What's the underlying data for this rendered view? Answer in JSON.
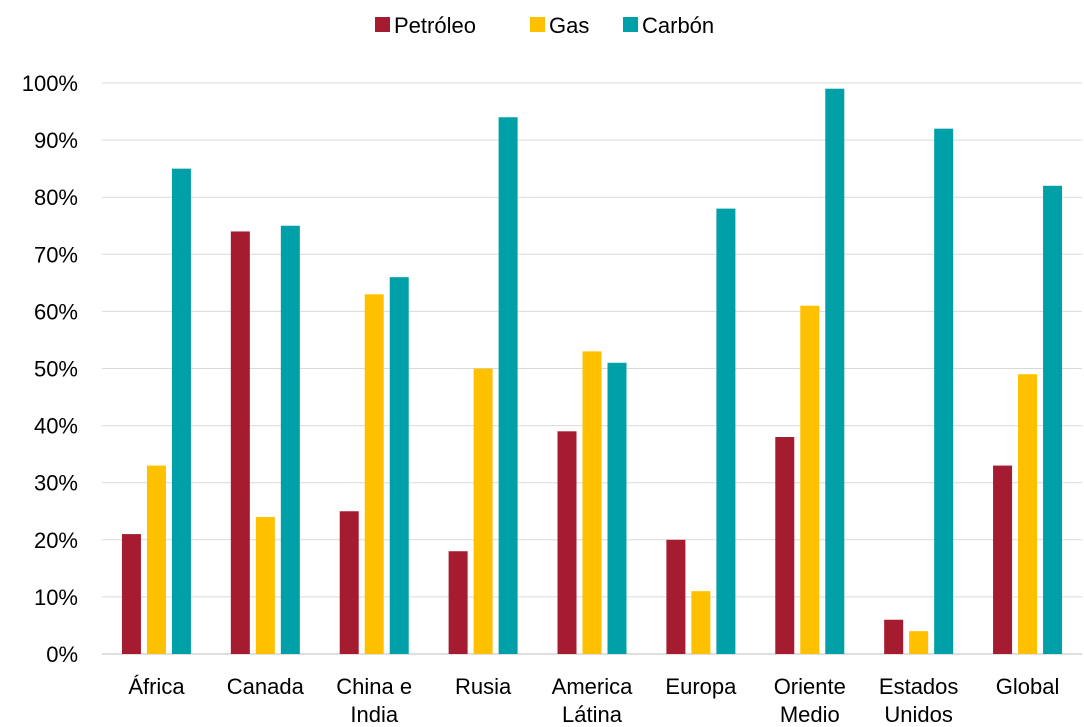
{
  "chart_data": {
    "type": "bar",
    "categories": [
      [
        "África"
      ],
      [
        "Canada"
      ],
      [
        "China e",
        "India"
      ],
      [
        "Rusia"
      ],
      [
        "America",
        "Látina"
      ],
      [
        "Europa"
      ],
      [
        "Oriente",
        "Medio"
      ],
      [
        "Estados",
        "Unidos"
      ],
      [
        "Global"
      ]
    ],
    "series": [
      {
        "name": "Petróleo",
        "color": "#A51C30",
        "values": [
          21,
          74,
          25,
          18,
          39,
          20,
          38,
          6,
          33
        ]
      },
      {
        "name": "Gas",
        "color": "#FFC000",
        "values": [
          33,
          24,
          63,
          50,
          53,
          11,
          61,
          4,
          49
        ]
      },
      {
        "name": "Carbón",
        "color": "#00A0A8",
        "values": [
          85,
          75,
          66,
          94,
          51,
          78,
          99,
          92,
          82
        ]
      }
    ],
    "ylim": [
      0,
      100
    ],
    "yticks": [
      0,
      10,
      20,
      30,
      40,
      50,
      60,
      70,
      80,
      90,
      100
    ],
    "ytick_format": "%",
    "grid": true,
    "legend_position": "top-center"
  }
}
